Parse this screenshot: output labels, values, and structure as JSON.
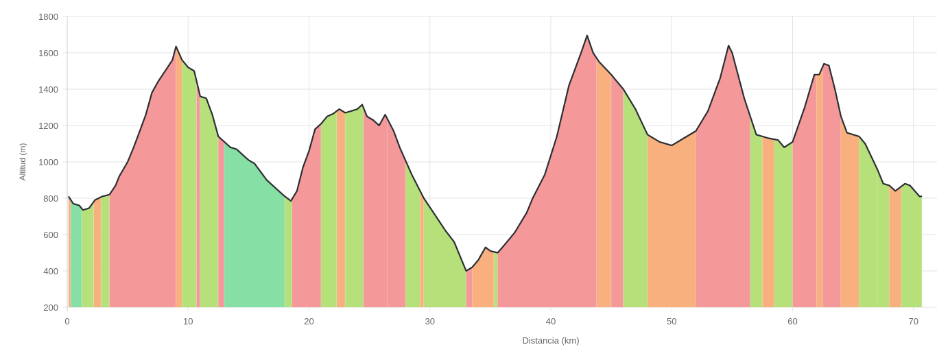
{
  "chart_data": {
    "type": "area",
    "title": "",
    "xlabel": "Distancia (km)",
    "ylabel": "Altitud (m)",
    "xlim": [
      0,
      72
    ],
    "ylim": [
      200,
      1800
    ],
    "grid": true,
    "legend": "none",
    "x_ticks": [
      "0",
      "10",
      "20",
      "30",
      "40",
      "50",
      "60",
      "70"
    ],
    "y_ticks": [
      "200",
      "400",
      "600",
      "800",
      "1000",
      "1200",
      "1400",
      "1600",
      "1800"
    ],
    "colors": {
      "g": "#86dfa4",
      "lg": "#b5e07a",
      "o": "#f8b07f",
      "r": "#f49899",
      "line": "#2b2f33",
      "grid": "#e3e3e3"
    },
    "profile": [
      [
        0.1,
        810
      ],
      [
        0.5,
        770
      ],
      [
        1.0,
        760
      ],
      [
        1.3,
        735
      ],
      [
        1.8,
        745
      ],
      [
        2.3,
        790
      ],
      [
        2.9,
        810
      ],
      [
        3.5,
        820
      ],
      [
        4.0,
        870
      ],
      [
        4.3,
        920
      ],
      [
        5.0,
        1000
      ],
      [
        5.5,
        1080
      ],
      [
        6.0,
        1170
      ],
      [
        6.5,
        1260
      ],
      [
        7.0,
        1380
      ],
      [
        7.5,
        1440
      ],
      [
        8.3,
        1520
      ],
      [
        8.7,
        1560
      ],
      [
        9.0,
        1635
      ],
      [
        9.5,
        1560
      ],
      [
        10.0,
        1520
      ],
      [
        10.5,
        1500
      ],
      [
        11.0,
        1360
      ],
      [
        11.5,
        1350
      ],
      [
        12.0,
        1260
      ],
      [
        12.5,
        1140
      ],
      [
        13.5,
        1080
      ],
      [
        14.0,
        1070
      ],
      [
        15.0,
        1010
      ],
      [
        15.5,
        990
      ],
      [
        16.5,
        900
      ],
      [
        17.5,
        840
      ],
      [
        18.0,
        810
      ],
      [
        18.5,
        785
      ],
      [
        19.0,
        840
      ],
      [
        19.5,
        970
      ],
      [
        20.0,
        1060
      ],
      [
        20.5,
        1180
      ],
      [
        21.0,
        1210
      ],
      [
        21.5,
        1250
      ],
      [
        22.0,
        1265
      ],
      [
        22.5,
        1290
      ],
      [
        23.0,
        1270
      ],
      [
        23.5,
        1280
      ],
      [
        24.0,
        1290
      ],
      [
        24.4,
        1315
      ],
      [
        24.8,
        1250
      ],
      [
        25.3,
        1230
      ],
      [
        25.8,
        1200
      ],
      [
        26.3,
        1260
      ],
      [
        27.0,
        1170
      ],
      [
        27.5,
        1080
      ],
      [
        28.5,
        930
      ],
      [
        29.5,
        800
      ],
      [
        30.5,
        700
      ],
      [
        31.3,
        620
      ],
      [
        32.0,
        560
      ],
      [
        33.0,
        400
      ],
      [
        33.5,
        420
      ],
      [
        34.0,
        460
      ],
      [
        34.6,
        530
      ],
      [
        35.0,
        510
      ],
      [
        35.6,
        500
      ],
      [
        36.0,
        530
      ],
      [
        37.0,
        610
      ],
      [
        38.0,
        720
      ],
      [
        38.5,
        800
      ],
      [
        39.5,
        930
      ],
      [
        40.5,
        1140
      ],
      [
        41.5,
        1420
      ],
      [
        42.5,
        1600
      ],
      [
        43.0,
        1695
      ],
      [
        43.5,
        1600
      ],
      [
        44.0,
        1550
      ],
      [
        45.0,
        1480
      ],
      [
        46.0,
        1400
      ],
      [
        47.0,
        1290
      ],
      [
        48.0,
        1150
      ],
      [
        49.0,
        1110
      ],
      [
        50.0,
        1090
      ],
      [
        51.0,
        1130
      ],
      [
        52.0,
        1170
      ],
      [
        53.0,
        1280
      ],
      [
        54.0,
        1460
      ],
      [
        54.7,
        1640
      ],
      [
        55.0,
        1600
      ],
      [
        56.0,
        1350
      ],
      [
        57.0,
        1150
      ],
      [
        58.0,
        1130
      ],
      [
        58.8,
        1120
      ],
      [
        59.3,
        1080
      ],
      [
        60.0,
        1110
      ],
      [
        61.0,
        1300
      ],
      [
        61.8,
        1480
      ],
      [
        62.2,
        1480
      ],
      [
        62.6,
        1540
      ],
      [
        63.0,
        1530
      ],
      [
        63.5,
        1400
      ],
      [
        64.0,
        1250
      ],
      [
        64.5,
        1160
      ],
      [
        65.5,
        1140
      ],
      [
        66.0,
        1100
      ],
      [
        67.0,
        960
      ],
      [
        67.5,
        880
      ],
      [
        68.0,
        870
      ],
      [
        68.5,
        840
      ],
      [
        69.3,
        880
      ],
      [
        69.7,
        870
      ],
      [
        70.5,
        810
      ],
      [
        70.7,
        810
      ]
    ],
    "slope_segments": [
      [
        0.0,
        0.3,
        "o"
      ],
      [
        0.3,
        1.2,
        "g"
      ],
      [
        1.2,
        2.2,
        "lg"
      ],
      [
        2.2,
        2.8,
        "o"
      ],
      [
        2.8,
        3.5,
        "lg"
      ],
      [
        3.5,
        9.0,
        "r"
      ],
      [
        9.0,
        9.5,
        "o"
      ],
      [
        9.5,
        10.7,
        "lg"
      ],
      [
        10.7,
        11.0,
        "r"
      ],
      [
        11.0,
        12.5,
        "lg"
      ],
      [
        12.5,
        13.0,
        "r"
      ],
      [
        13.0,
        18.0,
        "g"
      ],
      [
        18.0,
        18.6,
        "lg"
      ],
      [
        18.6,
        21.0,
        "r"
      ],
      [
        21.0,
        22.3,
        "lg"
      ],
      [
        22.3,
        23.0,
        "o"
      ],
      [
        23.0,
        24.5,
        "lg"
      ],
      [
        24.5,
        26.5,
        "r"
      ],
      [
        26.5,
        28.0,
        "r"
      ],
      [
        28.0,
        29.2,
        "lg"
      ],
      [
        29.2,
        29.5,
        "o"
      ],
      [
        29.5,
        33.0,
        "lg"
      ],
      [
        33.0,
        33.5,
        "r"
      ],
      [
        33.5,
        35.3,
        "o"
      ],
      [
        35.3,
        35.6,
        "lg"
      ],
      [
        35.6,
        43.8,
        "r"
      ],
      [
        43.8,
        45.0,
        "o"
      ],
      [
        45.0,
        46.0,
        "r"
      ],
      [
        46.0,
        48.0,
        "lg"
      ],
      [
        48.0,
        52.0,
        "o"
      ],
      [
        52.0,
        56.5,
        "r"
      ],
      [
        56.5,
        57.5,
        "lg"
      ],
      [
        57.5,
        58.5,
        "o"
      ],
      [
        58.5,
        60.0,
        "lg"
      ],
      [
        60.0,
        62.0,
        "r"
      ],
      [
        62.0,
        62.5,
        "o"
      ],
      [
        62.5,
        64.0,
        "r"
      ],
      [
        64.0,
        65.5,
        "o"
      ],
      [
        65.5,
        67.0,
        "lg"
      ],
      [
        67.0,
        68.0,
        "lg"
      ],
      [
        68.0,
        69.0,
        "o"
      ],
      [
        69.0,
        70.7,
        "lg"
      ]
    ]
  }
}
